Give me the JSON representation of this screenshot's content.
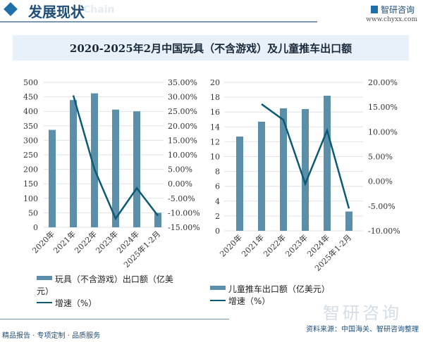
{
  "header": {
    "section_title": "发展现状",
    "section_sub": "Chain",
    "brand": "智研咨询",
    "url": "www.chyxx.com"
  },
  "title": "2020-2025年2月中国玩具（不含游戏）及儿童推车出口额",
  "colors": {
    "bar": "#5b8ea8",
    "line": "#0d5a75"
  },
  "chart_data": [
    {
      "type": "bar+line",
      "categories": [
        "2020年",
        "2021年",
        "2022年",
        "2023年",
        "2024年",
        "2025年1-2月"
      ],
      "series": [
        {
          "name": "玩具（不含游戏）出口额（亿美元）",
          "type": "bar",
          "axis": "left",
          "values": [
            336,
            439,
            462,
            406,
            400,
            50
          ]
        },
        {
          "name": "增速（%）",
          "type": "line",
          "axis": "right",
          "values": [
            null,
            30.5,
            5.0,
            -12.0,
            -1.5,
            -11.0
          ]
        }
      ],
      "ylim": [
        0,
        500
      ],
      "yticks": [
        0,
        50,
        100,
        150,
        200,
        250,
        300,
        350,
        400,
        450,
        500
      ],
      "y2lim": [
        -15,
        35
      ],
      "y2ticks": [
        "-15.00%",
        "-10.00%",
        "-5.00%",
        "0.00%",
        "5.00%",
        "10.00%",
        "15.00%",
        "20.00%",
        "25.00%",
        "30.00%",
        "35.00%"
      ],
      "grid": true,
      "legend": "bottom"
    },
    {
      "type": "bar+line",
      "categories": [
        "2020年",
        "2021年",
        "2022年",
        "2023年",
        "2024年",
        "2025年1-2月"
      ],
      "series": [
        {
          "name": "儿童推车出口额（亿美元）",
          "type": "bar",
          "axis": "left",
          "values": [
            12.7,
            14.7,
            16.5,
            16.4,
            18.2,
            2.6
          ]
        },
        {
          "name": "增速（%）",
          "type": "line",
          "axis": "right",
          "values": [
            null,
            15.6,
            12.4,
            -0.5,
            10.3,
            -5.5
          ]
        }
      ],
      "ylim": [
        0,
        20
      ],
      "yticks": [
        0,
        2,
        4,
        6,
        8,
        10,
        12,
        14,
        16,
        18,
        20
      ],
      "y2lim": [
        -10,
        20
      ],
      "y2ticks": [
        "-10.00%",
        "-5.00%",
        "0.00%",
        "5.00%",
        "10.00%",
        "15.00%",
        "20.00%"
      ],
      "grid": true,
      "legend": "bottom"
    }
  ],
  "footer": {
    "left": "精品报告 · 专项定制 · 品质服务",
    "source": "资料来源：中国海关、智研咨询整理",
    "watermark": "智研咨询"
  }
}
